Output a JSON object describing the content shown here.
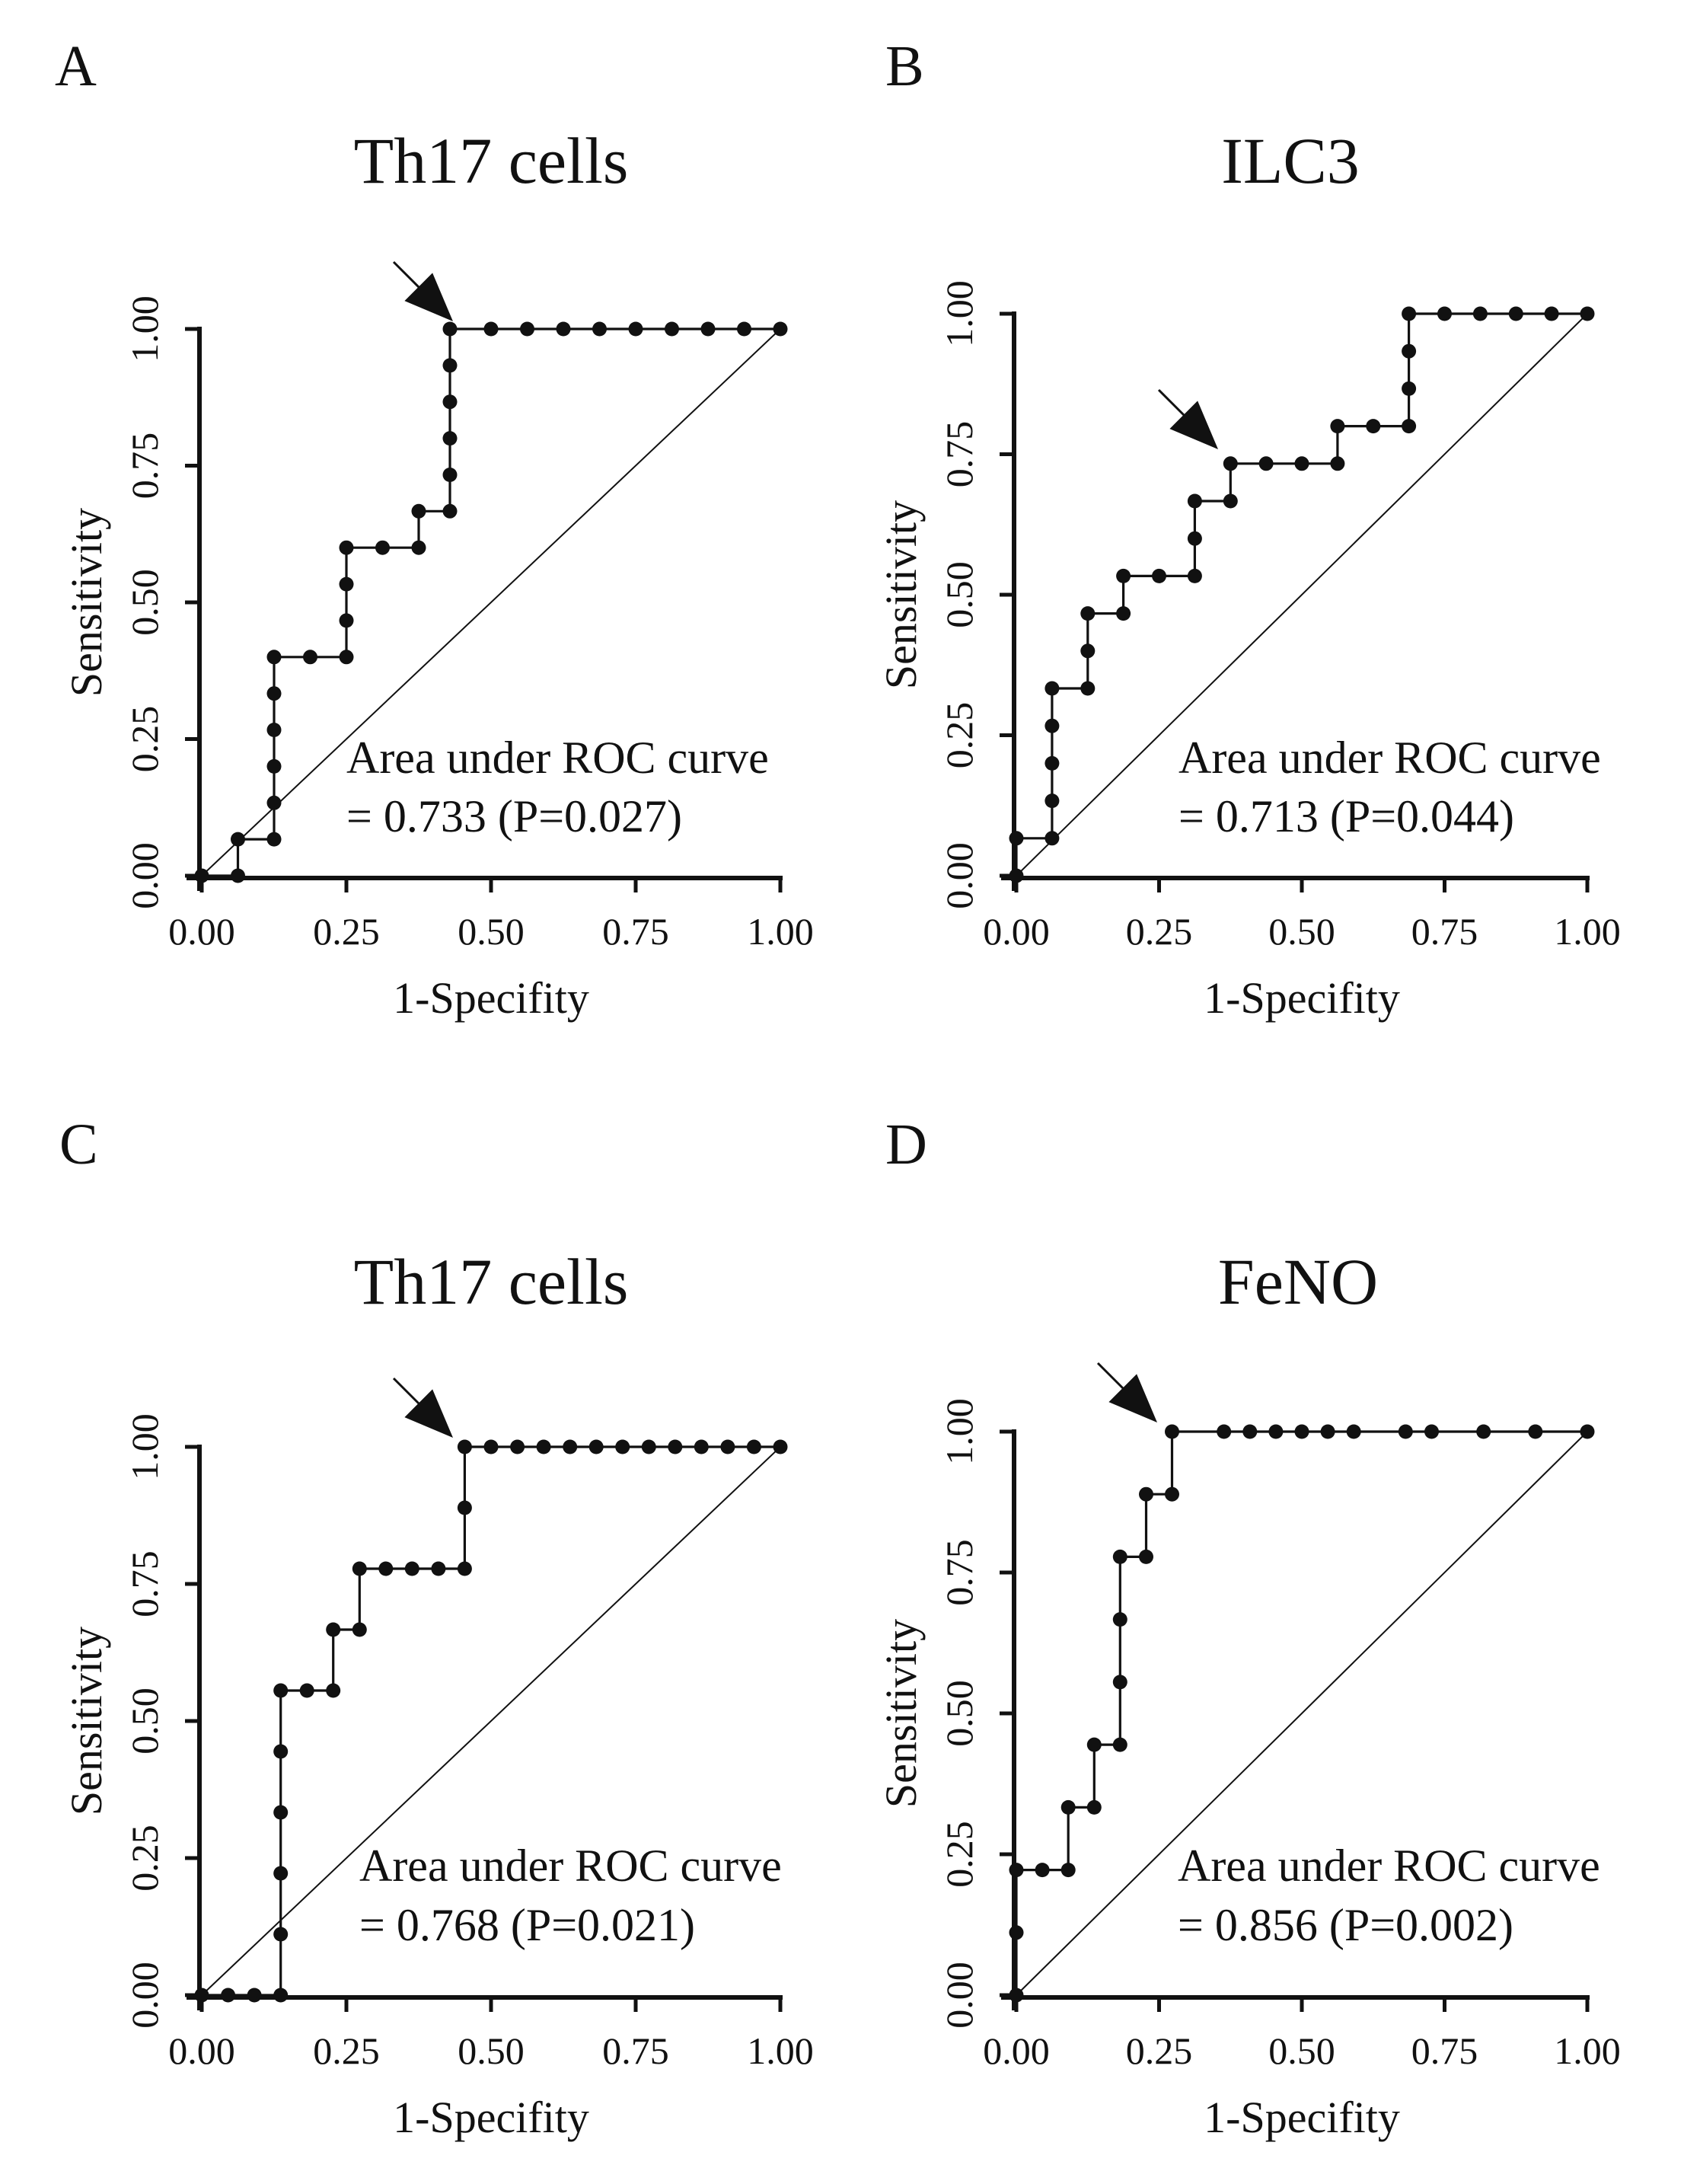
{
  "chart_data": [
    {
      "type": "line",
      "panel": "A",
      "title": "Th17 cells",
      "xlabel": "1-Specifity",
      "ylabel": "Sensitivity",
      "xlim": [
        0,
        1
      ],
      "ylim": [
        0,
        1
      ],
      "ticks": [
        "0.00",
        "0.25",
        "0.50",
        "0.75",
        "1.00"
      ],
      "annotation": [
        "Area under ROC curve",
        "= 0.733 (P=0.027)"
      ],
      "cutoff": {
        "x": 0.429,
        "y": 1.0
      },
      "points": [
        [
          0,
          0
        ],
        [
          0.0625,
          0
        ],
        [
          0.0625,
          0.0667
        ],
        [
          0.125,
          0.0667
        ],
        [
          0.125,
          0.1333
        ],
        [
          0.125,
          0.2
        ],
        [
          0.125,
          0.2667
        ],
        [
          0.125,
          0.3333
        ],
        [
          0.125,
          0.4
        ],
        [
          0.1875,
          0.4
        ],
        [
          0.25,
          0.4
        ],
        [
          0.25,
          0.4667
        ],
        [
          0.25,
          0.5333
        ],
        [
          0.25,
          0.6
        ],
        [
          0.3125,
          0.6
        ],
        [
          0.375,
          0.6
        ],
        [
          0.375,
          0.6667
        ],
        [
          0.429,
          0.6667
        ],
        [
          0.429,
          0.7333
        ],
        [
          0.429,
          0.8
        ],
        [
          0.429,
          0.8667
        ],
        [
          0.429,
          0.9333
        ],
        [
          0.429,
          1.0
        ],
        [
          0.5,
          1.0
        ],
        [
          0.5625,
          1.0
        ],
        [
          0.625,
          1.0
        ],
        [
          0.6875,
          1.0
        ],
        [
          0.75,
          1.0
        ],
        [
          0.8125,
          1.0
        ],
        [
          0.875,
          1.0
        ],
        [
          0.9375,
          1.0
        ],
        [
          1.0,
          1.0
        ]
      ]
    },
    {
      "type": "line",
      "panel": "B",
      "title": "ILC3",
      "xlabel": "1-Specifity",
      "ylabel": "Sensitivity",
      "xlim": [
        0,
        1
      ],
      "ylim": [
        0,
        1
      ],
      "ticks": [
        "0.00",
        "0.25",
        "0.50",
        "0.75",
        "1.00"
      ],
      "annotation": [
        "Area under ROC curve",
        "= 0.713 (P=0.044)"
      ],
      "cutoff": {
        "x": 0.375,
        "y": 0.7333
      },
      "points": [
        [
          0,
          0
        ],
        [
          0,
          0.0667
        ],
        [
          0.0625,
          0.0667
        ],
        [
          0.0625,
          0.1333
        ],
        [
          0.0625,
          0.2
        ],
        [
          0.0625,
          0.2667
        ],
        [
          0.0625,
          0.3333
        ],
        [
          0.125,
          0.3333
        ],
        [
          0.125,
          0.4
        ],
        [
          0.125,
          0.4667
        ],
        [
          0.1875,
          0.4667
        ],
        [
          0.1875,
          0.5333
        ],
        [
          0.25,
          0.5333
        ],
        [
          0.3125,
          0.5333
        ],
        [
          0.3125,
          0.6
        ],
        [
          0.3125,
          0.6667
        ],
        [
          0.375,
          0.6667
        ],
        [
          0.375,
          0.7333
        ],
        [
          0.4375,
          0.7333
        ],
        [
          0.5,
          0.7333
        ],
        [
          0.5625,
          0.7333
        ],
        [
          0.5625,
          0.8
        ],
        [
          0.625,
          0.8
        ],
        [
          0.6875,
          0.8
        ],
        [
          0.6875,
          0.8667
        ],
        [
          0.6875,
          0.9333
        ],
        [
          0.6875,
          1.0
        ],
        [
          0.75,
          1.0
        ],
        [
          0.8125,
          1.0
        ],
        [
          0.875,
          1.0
        ],
        [
          0.9375,
          1.0
        ],
        [
          1.0,
          1.0
        ]
      ]
    },
    {
      "type": "line",
      "panel": "C",
      "title": "Th17 cells",
      "xlabel": "1-Specifity",
      "ylabel": "Sensitivity",
      "xlim": [
        0,
        1
      ],
      "ylim": [
        0,
        1
      ],
      "ticks": [
        "0.00",
        "0.25",
        "0.50",
        "0.75",
        "1.00"
      ],
      "annotation": [
        "Area under ROC curve",
        "= 0.768 (P=0.021)"
      ],
      "cutoff": {
        "x": 0.4545,
        "y": 1.0
      },
      "points": [
        [
          0,
          0
        ],
        [
          0.0455,
          0
        ],
        [
          0.0909,
          0
        ],
        [
          0.1364,
          0
        ],
        [
          0.1364,
          0.1111
        ],
        [
          0.1364,
          0.2222
        ],
        [
          0.1364,
          0.3333
        ],
        [
          0.1364,
          0.4444
        ],
        [
          0.1364,
          0.5556
        ],
        [
          0.1818,
          0.5556
        ],
        [
          0.2273,
          0.5556
        ],
        [
          0.2273,
          0.6667
        ],
        [
          0.2727,
          0.6667
        ],
        [
          0.2727,
          0.7778
        ],
        [
          0.3182,
          0.7778
        ],
        [
          0.3636,
          0.7778
        ],
        [
          0.4091,
          0.7778
        ],
        [
          0.4545,
          0.7778
        ],
        [
          0.4545,
          0.8889
        ],
        [
          0.4545,
          1.0
        ],
        [
          0.5,
          1.0
        ],
        [
          0.5455,
          1.0
        ],
        [
          0.5909,
          1.0
        ],
        [
          0.6364,
          1.0
        ],
        [
          0.6818,
          1.0
        ],
        [
          0.7273,
          1.0
        ],
        [
          0.7727,
          1.0
        ],
        [
          0.8182,
          1.0
        ],
        [
          0.8636,
          1.0
        ],
        [
          0.9091,
          1.0
        ],
        [
          0.9545,
          1.0
        ],
        [
          1.0,
          1.0
        ]
      ]
    },
    {
      "type": "line",
      "panel": "D",
      "title": "FeNO",
      "xlabel": "1-Specifity",
      "ylabel": "Sensitivity",
      "xlim": [
        0,
        1
      ],
      "ylim": [
        0,
        1
      ],
      "ticks": [
        "0.00",
        "0.25",
        "0.50",
        "0.75",
        "1.00"
      ],
      "annotation": [
        "Area under ROC curve",
        "= 0.856 (P=0.002)"
      ],
      "cutoff": {
        "x": 0.2727,
        "y": 1.0
      },
      "points": [
        [
          0,
          0
        ],
        [
          0,
          0.1111
        ],
        [
          0,
          0.2222
        ],
        [
          0.0455,
          0.2222
        ],
        [
          0.0909,
          0.2222
        ],
        [
          0.0909,
          0.3333
        ],
        [
          0.1364,
          0.3333
        ],
        [
          0.1364,
          0.4444
        ],
        [
          0.1818,
          0.4444
        ],
        [
          0.1818,
          0.5556
        ],
        [
          0.1818,
          0.6667
        ],
        [
          0.1818,
          0.7778
        ],
        [
          0.2273,
          0.7778
        ],
        [
          0.2273,
          0.8889
        ],
        [
          0.2727,
          0.8889
        ],
        [
          0.2727,
          1.0
        ],
        [
          0.3636,
          1.0
        ],
        [
          0.4091,
          1.0
        ],
        [
          0.4545,
          1.0
        ],
        [
          0.5,
          1.0
        ],
        [
          0.5455,
          1.0
        ],
        [
          0.5909,
          1.0
        ],
        [
          0.6818,
          1.0
        ],
        [
          0.7273,
          1.0
        ],
        [
          0.8182,
          1.0
        ],
        [
          0.9091,
          1.0
        ],
        [
          1.0,
          1.0
        ]
      ]
    }
  ]
}
